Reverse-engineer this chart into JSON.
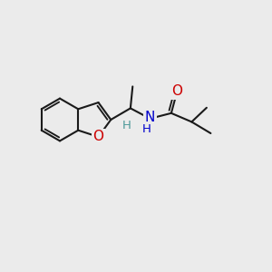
{
  "bg_color": "#ebebeb",
  "bond_color": "#1a1a1a",
  "bond_width": 1.5,
  "atom_colors": {
    "O": "#cc0000",
    "N": "#0000cc",
    "H_teal": "#4d9999"
  },
  "font_size_atom": 11,
  "font_size_h": 9.5
}
